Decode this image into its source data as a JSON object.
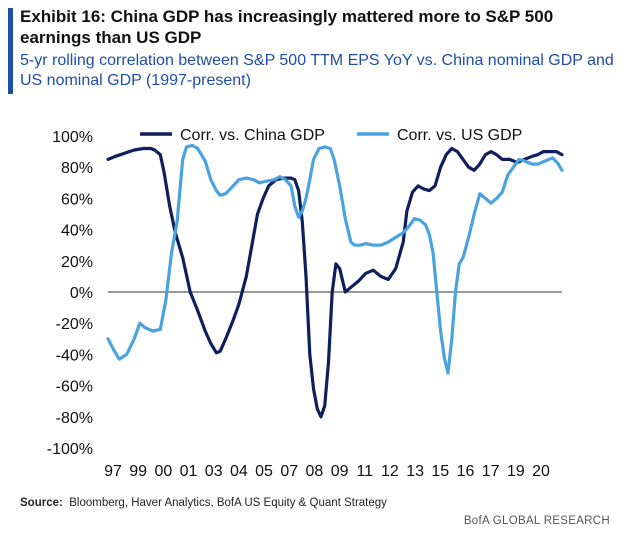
{
  "header": {
    "title": "Exhibit 16: China GDP has increasingly mattered more to S&P 500 earnings than US GDP",
    "subtitle": "5-yr rolling correlation between S&P 500 TTM EPS YoY vs. China nominal GDP and US nominal GDP (1997-present)"
  },
  "footer": {
    "source_label": "Source:",
    "source_text": "Bloomberg, Haver Analytics, BofA US Equity & Quant Strategy",
    "brand": "BofA GLOBAL RESEARCH"
  },
  "colors": {
    "accent": "#1f4ea8",
    "china": "#0d1f5c",
    "us": "#4aa3df",
    "zero_line": "#333333"
  },
  "chart_data": {
    "type": "line",
    "title": "",
    "xlabel": "",
    "ylabel": "",
    "x_tick_labels": [
      "97",
      "99",
      "00",
      "01",
      "03",
      "04",
      "05",
      "07",
      "08",
      "09",
      "11",
      "12",
      "13",
      "15",
      "16",
      "17",
      "19",
      "20"
    ],
    "y_tick_labels": [
      "100%",
      "80%",
      "60%",
      "40%",
      "20%",
      "0%",
      "-20%",
      "-40%",
      "-60%",
      "-80%",
      "-100%"
    ],
    "ylim": [
      -100,
      100
    ],
    "xlim": [
      1997.0,
      2021.3
    ],
    "legend_position": "top",
    "grid": false,
    "series": [
      {
        "name": "Corr. vs. China GDP",
        "color": "#0d1f5c",
        "x": [
          1997.0,
          1997.4,
          1997.9,
          1998.4,
          1998.9,
          1999.3,
          1999.5,
          1999.8,
          2000.0,
          2000.3,
          2000.6,
          2001.0,
          2001.4,
          2001.8,
          2002.2,
          2002.5,
          2002.8,
          2003.0,
          2003.3,
          2003.7,
          2004.0,
          2004.4,
          2004.7,
          2005.0,
          2005.3,
          2005.6,
          2006.0,
          2006.4,
          2006.8,
          2007.0,
          2007.2,
          2007.4,
          2007.6,
          2007.8,
          2008.0,
          2008.2,
          2008.4,
          2008.6,
          2008.8,
          2009.0,
          2009.2,
          2009.4,
          2009.7,
          2010.0,
          2010.4,
          2010.8,
          2011.2,
          2011.6,
          2012.0,
          2012.4,
          2012.8,
          2013.0,
          2013.3,
          2013.6,
          2013.9,
          2014.2,
          2014.5,
          2014.8,
          2015.1,
          2015.4,
          2015.7,
          2016.0,
          2016.3,
          2016.6,
          2016.9,
          2017.2,
          2017.5,
          2017.8,
          2018.1,
          2018.5,
          2018.9,
          2019.3,
          2019.7,
          2020.0,
          2020.3,
          2020.7,
          2021.0,
          2021.3
        ],
        "y": [
          85,
          87,
          89,
          91,
          92,
          92,
          91,
          88,
          77,
          55,
          38,
          22,
          0,
          -12,
          -25,
          -33,
          -39,
          -38,
          -30,
          -18,
          -8,
          10,
          30,
          50,
          60,
          68,
          72,
          73,
          73,
          72,
          65,
          45,
          10,
          -40,
          -62,
          -75,
          -80,
          -73,
          -45,
          0,
          18,
          15,
          0,
          3,
          7,
          12,
          14,
          10,
          8,
          15,
          32,
          52,
          64,
          68,
          66,
          65,
          68,
          80,
          88,
          92,
          90,
          85,
          80,
          78,
          82,
          88,
          90,
          88,
          85,
          85,
          83,
          85,
          87,
          88,
          90,
          90,
          90,
          88
        ]
      },
      {
        "name": "Corr. vs. US GDP",
        "color": "#4aa3df",
        "x": [
          1997.0,
          1997.3,
          1997.6,
          1998.0,
          1998.4,
          1998.7,
          1999.0,
          1999.4,
          1999.8,
          2000.1,
          2000.4,
          2000.7,
          2001.0,
          2001.2,
          2001.5,
          2001.8,
          2002.2,
          2002.5,
          2002.8,
          2003.0,
          2003.3,
          2003.7,
          2004.0,
          2004.4,
          2004.8,
          2005.1,
          2005.5,
          2005.9,
          2006.2,
          2006.5,
          2006.8,
          2007.0,
          2007.2,
          2007.4,
          2007.6,
          2007.8,
          2008.0,
          2008.3,
          2008.6,
          2008.9,
          2009.1,
          2009.4,
          2009.7,
          2010.0,
          2010.2,
          2010.5,
          2010.8,
          2011.2,
          2011.6,
          2012.0,
          2012.4,
          2012.8,
          2013.1,
          2013.4,
          2013.7,
          2014.0,
          2014.2,
          2014.4,
          2014.6,
          2014.8,
          2015.0,
          2015.2,
          2015.4,
          2015.6,
          2015.8,
          2016.0,
          2016.3,
          2016.6,
          2016.9,
          2017.2,
          2017.5,
          2017.8,
          2018.1,
          2018.4,
          2018.7,
          2019.0,
          2019.3,
          2019.7,
          2020.0,
          2020.4,
          2020.8,
          2021.1,
          2021.3
        ],
        "y": [
          -30,
          -37,
          -43,
          -40,
          -30,
          -20,
          -23,
          -25,
          -24,
          -5,
          25,
          45,
          85,
          93,
          94,
          92,
          84,
          72,
          65,
          62,
          63,
          68,
          72,
          73,
          72,
          70,
          71,
          72,
          74,
          72,
          68,
          55,
          48,
          52,
          60,
          72,
          85,
          92,
          93,
          92,
          85,
          68,
          47,
          32,
          30,
          30,
          31,
          30,
          30,
          32,
          35,
          38,
          42,
          47,
          46,
          43,
          37,
          25,
          0,
          -25,
          -42,
          -52,
          -30,
          0,
          18,
          22,
          35,
          50,
          63,
          60,
          57,
          60,
          64,
          75,
          80,
          85,
          84,
          82,
          82,
          84,
          86,
          82,
          78
        ]
      }
    ]
  }
}
